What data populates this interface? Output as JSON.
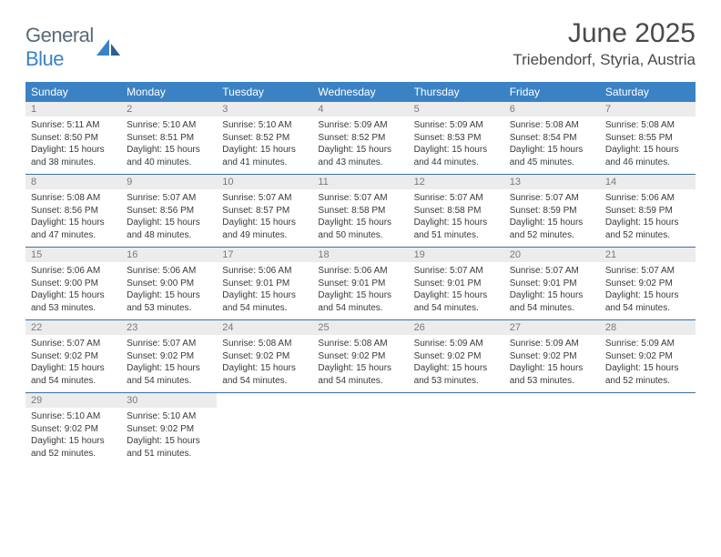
{
  "logo": {
    "text1": "General",
    "text2": "Blue"
  },
  "title": "June 2025",
  "location": "Triebendorf, Styria, Austria",
  "colors": {
    "header_bg": "#3b82c4",
    "header_text": "#ffffff",
    "date_bg": "#ececec",
    "date_text": "#7a7a7a",
    "body_text": "#3a3a3a",
    "row_border": "#3b6fa0",
    "logo_gray": "#5a6a78",
    "logo_blue": "#3b82c4"
  },
  "typography": {
    "title_fontsize": 30,
    "location_fontsize": 17,
    "dayheader_fontsize": 12,
    "date_fontsize": 11,
    "cell_fontsize": 10
  },
  "day_headers": [
    "Sunday",
    "Monday",
    "Tuesday",
    "Wednesday",
    "Thursday",
    "Friday",
    "Saturday"
  ],
  "weeks": [
    [
      {
        "date": "1",
        "sunrise": "Sunrise: 5:11 AM",
        "sunset": "Sunset: 8:50 PM",
        "daylight": "Daylight: 15 hours and 38 minutes."
      },
      {
        "date": "2",
        "sunrise": "Sunrise: 5:10 AM",
        "sunset": "Sunset: 8:51 PM",
        "daylight": "Daylight: 15 hours and 40 minutes."
      },
      {
        "date": "3",
        "sunrise": "Sunrise: 5:10 AM",
        "sunset": "Sunset: 8:52 PM",
        "daylight": "Daylight: 15 hours and 41 minutes."
      },
      {
        "date": "4",
        "sunrise": "Sunrise: 5:09 AM",
        "sunset": "Sunset: 8:52 PM",
        "daylight": "Daylight: 15 hours and 43 minutes."
      },
      {
        "date": "5",
        "sunrise": "Sunrise: 5:09 AM",
        "sunset": "Sunset: 8:53 PM",
        "daylight": "Daylight: 15 hours and 44 minutes."
      },
      {
        "date": "6",
        "sunrise": "Sunrise: 5:08 AM",
        "sunset": "Sunset: 8:54 PM",
        "daylight": "Daylight: 15 hours and 45 minutes."
      },
      {
        "date": "7",
        "sunrise": "Sunrise: 5:08 AM",
        "sunset": "Sunset: 8:55 PM",
        "daylight": "Daylight: 15 hours and 46 minutes."
      }
    ],
    [
      {
        "date": "8",
        "sunrise": "Sunrise: 5:08 AM",
        "sunset": "Sunset: 8:56 PM",
        "daylight": "Daylight: 15 hours and 47 minutes."
      },
      {
        "date": "9",
        "sunrise": "Sunrise: 5:07 AM",
        "sunset": "Sunset: 8:56 PM",
        "daylight": "Daylight: 15 hours and 48 minutes."
      },
      {
        "date": "10",
        "sunrise": "Sunrise: 5:07 AM",
        "sunset": "Sunset: 8:57 PM",
        "daylight": "Daylight: 15 hours and 49 minutes."
      },
      {
        "date": "11",
        "sunrise": "Sunrise: 5:07 AM",
        "sunset": "Sunset: 8:58 PM",
        "daylight": "Daylight: 15 hours and 50 minutes."
      },
      {
        "date": "12",
        "sunrise": "Sunrise: 5:07 AM",
        "sunset": "Sunset: 8:58 PM",
        "daylight": "Daylight: 15 hours and 51 minutes."
      },
      {
        "date": "13",
        "sunrise": "Sunrise: 5:07 AM",
        "sunset": "Sunset: 8:59 PM",
        "daylight": "Daylight: 15 hours and 52 minutes."
      },
      {
        "date": "14",
        "sunrise": "Sunrise: 5:06 AM",
        "sunset": "Sunset: 8:59 PM",
        "daylight": "Daylight: 15 hours and 52 minutes."
      }
    ],
    [
      {
        "date": "15",
        "sunrise": "Sunrise: 5:06 AM",
        "sunset": "Sunset: 9:00 PM",
        "daylight": "Daylight: 15 hours and 53 minutes."
      },
      {
        "date": "16",
        "sunrise": "Sunrise: 5:06 AM",
        "sunset": "Sunset: 9:00 PM",
        "daylight": "Daylight: 15 hours and 53 minutes."
      },
      {
        "date": "17",
        "sunrise": "Sunrise: 5:06 AM",
        "sunset": "Sunset: 9:01 PM",
        "daylight": "Daylight: 15 hours and 54 minutes."
      },
      {
        "date": "18",
        "sunrise": "Sunrise: 5:06 AM",
        "sunset": "Sunset: 9:01 PM",
        "daylight": "Daylight: 15 hours and 54 minutes."
      },
      {
        "date": "19",
        "sunrise": "Sunrise: 5:07 AM",
        "sunset": "Sunset: 9:01 PM",
        "daylight": "Daylight: 15 hours and 54 minutes."
      },
      {
        "date": "20",
        "sunrise": "Sunrise: 5:07 AM",
        "sunset": "Sunset: 9:01 PM",
        "daylight": "Daylight: 15 hours and 54 minutes."
      },
      {
        "date": "21",
        "sunrise": "Sunrise: 5:07 AM",
        "sunset": "Sunset: 9:02 PM",
        "daylight": "Daylight: 15 hours and 54 minutes."
      }
    ],
    [
      {
        "date": "22",
        "sunrise": "Sunrise: 5:07 AM",
        "sunset": "Sunset: 9:02 PM",
        "daylight": "Daylight: 15 hours and 54 minutes."
      },
      {
        "date": "23",
        "sunrise": "Sunrise: 5:07 AM",
        "sunset": "Sunset: 9:02 PM",
        "daylight": "Daylight: 15 hours and 54 minutes."
      },
      {
        "date": "24",
        "sunrise": "Sunrise: 5:08 AM",
        "sunset": "Sunset: 9:02 PM",
        "daylight": "Daylight: 15 hours and 54 minutes."
      },
      {
        "date": "25",
        "sunrise": "Sunrise: 5:08 AM",
        "sunset": "Sunset: 9:02 PM",
        "daylight": "Daylight: 15 hours and 54 minutes."
      },
      {
        "date": "26",
        "sunrise": "Sunrise: 5:09 AM",
        "sunset": "Sunset: 9:02 PM",
        "daylight": "Daylight: 15 hours and 53 minutes."
      },
      {
        "date": "27",
        "sunrise": "Sunrise: 5:09 AM",
        "sunset": "Sunset: 9:02 PM",
        "daylight": "Daylight: 15 hours and 53 minutes."
      },
      {
        "date": "28",
        "sunrise": "Sunrise: 5:09 AM",
        "sunset": "Sunset: 9:02 PM",
        "daylight": "Daylight: 15 hours and 52 minutes."
      }
    ],
    [
      {
        "date": "29",
        "sunrise": "Sunrise: 5:10 AM",
        "sunset": "Sunset: 9:02 PM",
        "daylight": "Daylight: 15 hours and 52 minutes."
      },
      {
        "date": "30",
        "sunrise": "Sunrise: 5:10 AM",
        "sunset": "Sunset: 9:02 PM",
        "daylight": "Daylight: 15 hours and 51 minutes."
      },
      null,
      null,
      null,
      null,
      null
    ]
  ]
}
